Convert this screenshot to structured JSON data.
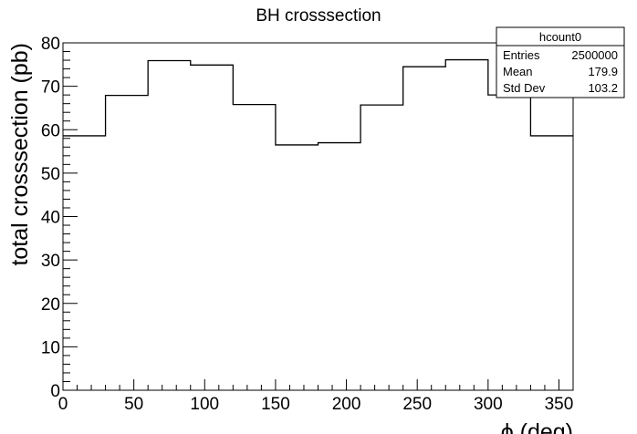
{
  "chart_data": {
    "type": "bar",
    "title": "BH crosssection",
    "xlabel": "ϕ (deg)",
    "ylabel": "total crosssection (pb)",
    "xlim": [
      0,
      360
    ],
    "ylim": [
      0,
      80
    ],
    "x_ticks": [
      "0",
      "50",
      "100",
      "150",
      "200",
      "250",
      "300",
      "350"
    ],
    "y_ticks": [
      "0",
      "10",
      "20",
      "30",
      "40",
      "50",
      "60",
      "70",
      "80"
    ],
    "bin_edges": [
      0,
      30,
      60,
      90,
      120,
      150,
      180,
      210,
      240,
      270,
      300,
      330,
      360
    ],
    "values": [
      58.6,
      67.9,
      75.9,
      74.9,
      65.8,
      56.5,
      57.0,
      65.7,
      74.5,
      76.1,
      68.0,
      58.6
    ],
    "grid": false,
    "legend": "none",
    "stats_box": {
      "name": "hcount0",
      "rows": [
        {
          "label": "Entries",
          "value": "2500000"
        },
        {
          "label": "Mean",
          "value": "179.9"
        },
        {
          "label": "Std Dev",
          "value": "103.2"
        }
      ]
    }
  }
}
